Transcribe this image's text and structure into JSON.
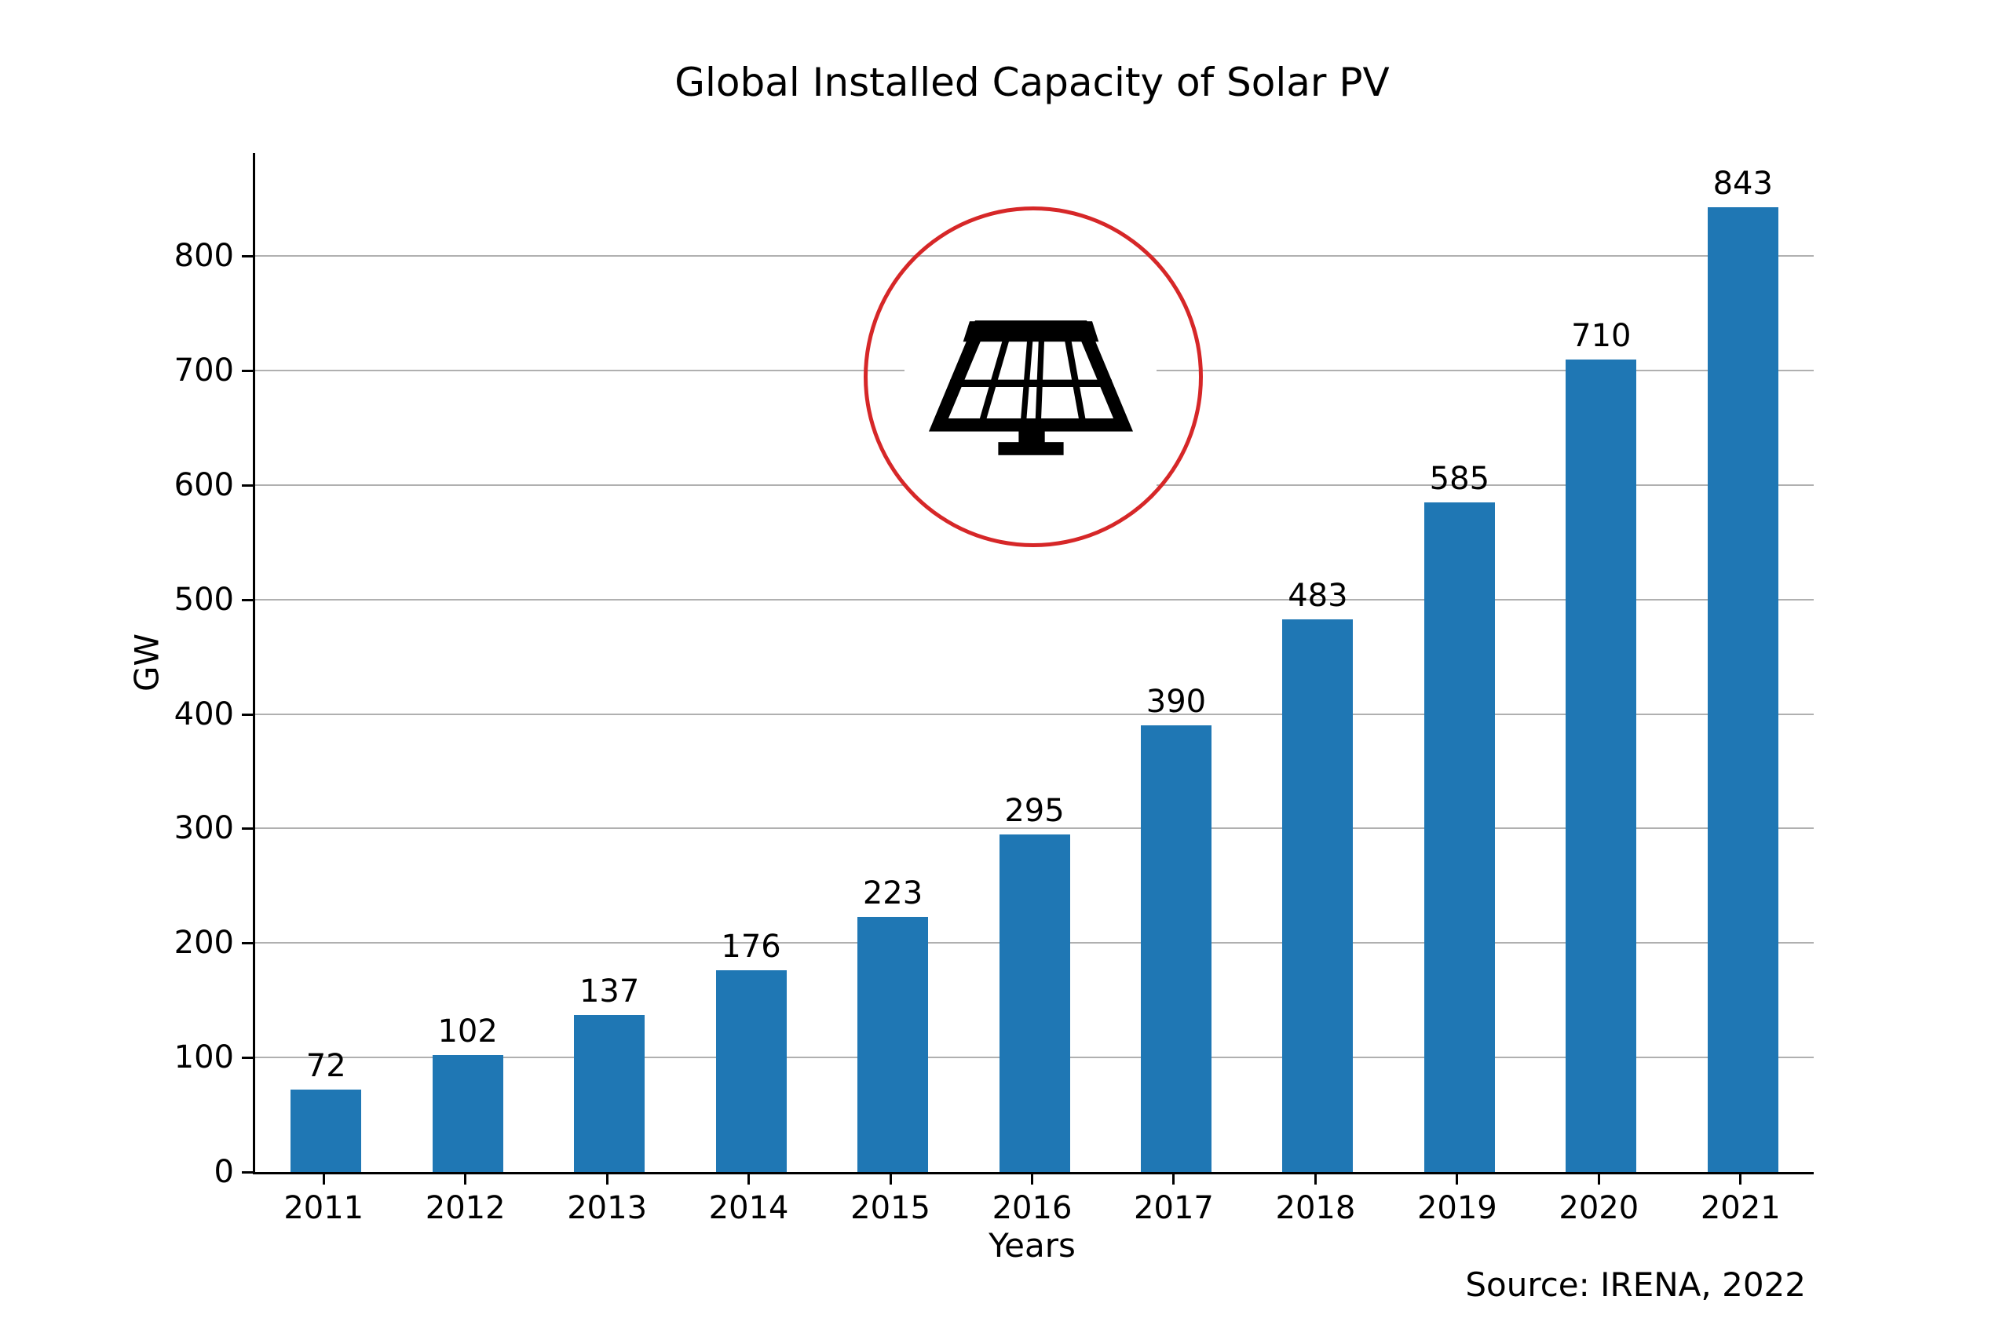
{
  "chart_data": {
    "type": "bar",
    "title": "Global Installed Capacity of Solar PV",
    "categories": [
      "2011",
      "2012",
      "2013",
      "2014",
      "2015",
      "2016",
      "2017",
      "2018",
      "2019",
      "2020",
      "2021"
    ],
    "values": [
      72,
      102,
      137,
      176,
      223,
      295,
      390,
      483,
      585,
      710,
      843
    ],
    "xlabel": "Years",
    "ylabel": "GW",
    "ylim": [
      0,
      890
    ],
    "yticks": [
      0,
      100,
      200,
      300,
      400,
      500,
      600,
      700,
      800
    ],
    "grid": "horizontal gridlines only",
    "legend": "none",
    "show_value_labels": true,
    "bar_color": "#1f77b4",
    "grid_color": "#b0b0b0",
    "axis_color": "#000000",
    "text_color": "#000000",
    "source_note": "Source: IRENA, 2022",
    "annotation": {
      "icon": "solar-panel-icon",
      "icon_color": "#000000",
      "circle_color": "#d62728"
    }
  }
}
